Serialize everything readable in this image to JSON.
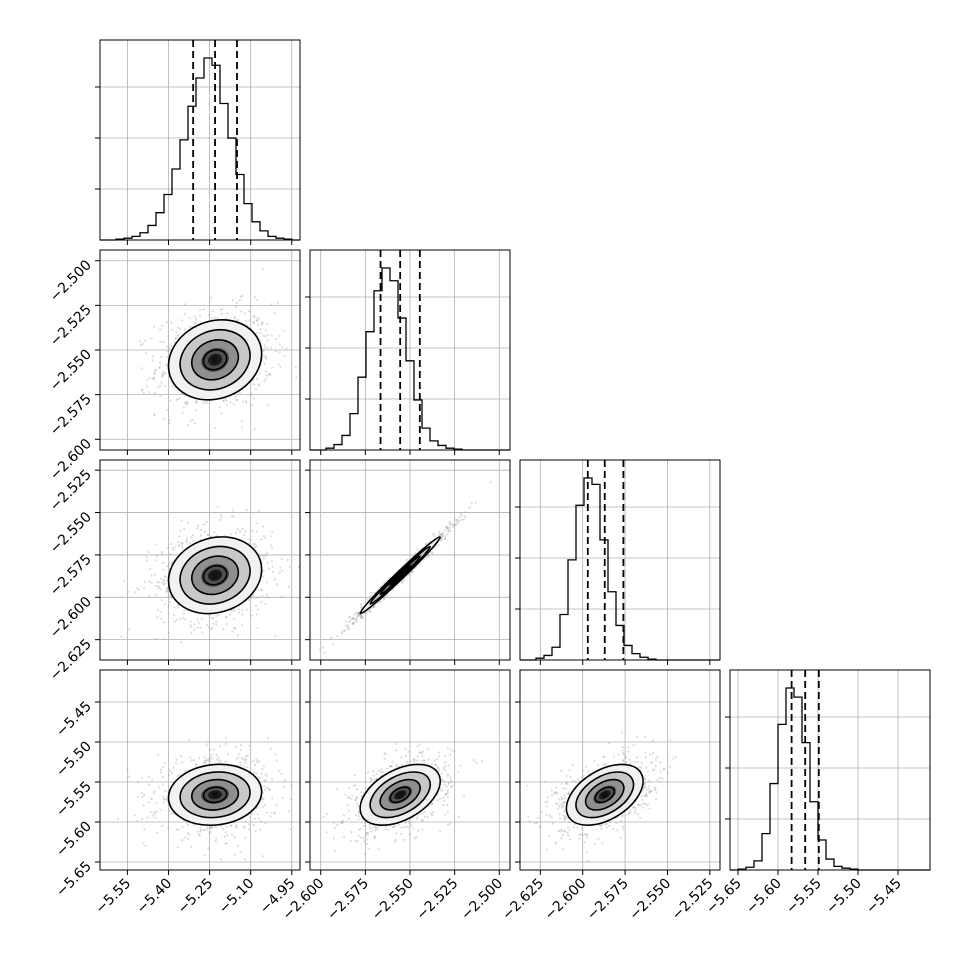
{
  "chart_data": {
    "type": "corner",
    "parameters": [
      {
        "range": [
          -5.65,
          -4.92
        ],
        "tick_values": [
          -5.55,
          -5.4,
          -5.25,
          -5.1,
          -4.95
        ],
        "tick_labels": [
          "−5.55",
          "−5.40",
          "−5.25",
          "−5.10",
          "−4.95"
        ],
        "quantiles": [
          -5.31,
          -5.23,
          -5.15
        ],
        "hist_edges_start": -5.65,
        "hist_bin_width": 0.0292,
        "hist_counts": [
          0,
          0,
          1,
          2,
          4,
          8,
          16,
          30,
          50,
          78,
          110,
          147,
          178,
          200,
          192,
          150,
          112,
          72,
          40,
          20,
          10,
          4,
          2,
          1,
          0
        ]
      },
      {
        "range": [
          -2.606,
          -2.494
        ],
        "tick_values": [
          -2.6,
          -2.575,
          -2.55,
          -2.525,
          -2.5
        ],
        "tick_labels": [
          "−2.600",
          "−2.575",
          "−2.550",
          "−2.525",
          "−2.500"
        ],
        "quantiles": [
          -2.5665,
          -2.5555,
          -2.5445
        ],
        "hist_edges_start": -2.606,
        "hist_bin_width": 0.00448,
        "hist_counts": [
          0,
          0,
          2,
          6,
          16,
          40,
          80,
          130,
          175,
          200,
          186,
          145,
          98,
          55,
          24,
          10,
          5,
          2,
          1,
          0,
          0,
          0,
          0,
          0,
          0
        ]
      },
      {
        "range": [
          -2.637,
          -2.519
        ],
        "tick_values": [
          -2.625,
          -2.6,
          -2.575,
          -2.55,
          -2.525
        ],
        "tick_labels": [
          "−2.625",
          "−2.600",
          "−2.575",
          "−2.550",
          "−2.525"
        ],
        "quantiles": [
          -2.597,
          -2.587,
          -2.576
        ],
        "hist_edges_start": -2.637,
        "hist_bin_width": 0.00472,
        "hist_counts": [
          0,
          0,
          2,
          5,
          14,
          50,
          110,
          170,
          200,
          193,
          132,
          75,
          38,
          16,
          7,
          3,
          1,
          0,
          0,
          0,
          0,
          0,
          0,
          0,
          0
        ]
      },
      {
        "range": [
          -5.66,
          -5.41
        ],
        "tick_values": [
          -5.65,
          -5.6,
          -5.55,
          -5.5,
          -5.45
        ],
        "tick_labels": [
          "−5.65",
          "−5.60",
          "−5.55",
          "−5.50",
          "−5.45"
        ],
        "quantiles": [
          -5.583,
          -5.566,
          -5.549
        ],
        "hist_edges_start": -5.66,
        "hist_bin_width": 0.01,
        "hist_counts": [
          0,
          1,
          3,
          10,
          40,
          95,
          160,
          200,
          190,
          140,
          75,
          33,
          12,
          4,
          2,
          1,
          0,
          0,
          0,
          0,
          0,
          0,
          0,
          0,
          0
        ]
      }
    ],
    "pairs": [
      {
        "row": 1,
        "col": 0,
        "mean": [
          -5.23,
          -2.5555
        ],
        "sd": [
          0.085,
          0.0112
        ],
        "corr": 0.15
      },
      {
        "row": 2,
        "col": 0,
        "mean": [
          -5.23,
          -2.587
        ],
        "sd": [
          0.085,
          0.0113
        ],
        "corr": 0.15
      },
      {
        "row": 2,
        "col": 1,
        "mean": [
          -2.5555,
          -2.587
        ],
        "sd": [
          0.0112,
          0.0113
        ],
        "corr": 0.99
      },
      {
        "row": 3,
        "col": 0,
        "mean": [
          -5.23,
          -5.566
        ],
        "sd": [
          0.085,
          0.019
        ],
        "corr": 0.1
      },
      {
        "row": 3,
        "col": 1,
        "mean": [
          -2.5555,
          -5.566
        ],
        "sd": [
          0.0112,
          0.019
        ],
        "corr": 0.45
      },
      {
        "row": 3,
        "col": 2,
        "mean": [
          -2.587,
          -5.566
        ],
        "sd": [
          0.0113,
          0.019
        ],
        "corr": 0.45
      }
    ],
    "contour_levels_sigma": [
      0.5,
      1.0,
      1.5,
      2.0
    ],
    "density_shades": [
      "#f2f2f2",
      "#c8c8c8",
      "#8f8f8f",
      "#4f4f4f",
      "#1a1a1a"
    ],
    "title": "",
    "grid": true
  }
}
